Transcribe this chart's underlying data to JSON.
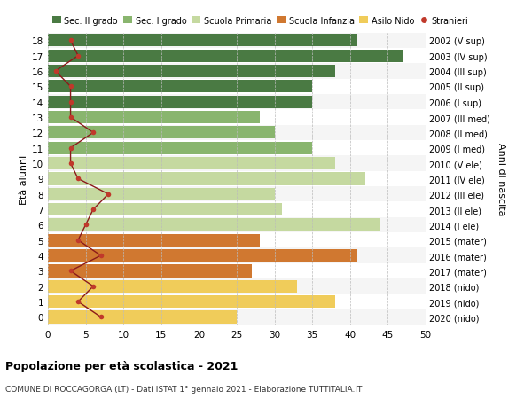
{
  "ages": [
    18,
    17,
    16,
    15,
    14,
    13,
    12,
    11,
    10,
    9,
    8,
    7,
    6,
    5,
    4,
    3,
    2,
    1,
    0
  ],
  "bar_values": [
    41,
    47,
    38,
    35,
    35,
    28,
    30,
    35,
    38,
    42,
    30,
    31,
    44,
    28,
    41,
    27,
    33,
    38,
    25
  ],
  "bar_colors": [
    "#4a7a43",
    "#4a7a43",
    "#4a7a43",
    "#4a7a43",
    "#4a7a43",
    "#89b56e",
    "#89b56e",
    "#89b56e",
    "#c5d9a0",
    "#c5d9a0",
    "#c5d9a0",
    "#c5d9a0",
    "#c5d9a0",
    "#d07830",
    "#d07830",
    "#d07830",
    "#f0cc5a",
    "#f0cc5a",
    "#f0cc5a"
  ],
  "stranieri_values": [
    3,
    4,
    1,
    3,
    3,
    3,
    6,
    3,
    3,
    4,
    8,
    6,
    5,
    4,
    7,
    3,
    6,
    4,
    7
  ],
  "right_labels": [
    "2002 (V sup)",
    "2003 (IV sup)",
    "2004 (III sup)",
    "2005 (II sup)",
    "2006 (I sup)",
    "2007 (III med)",
    "2008 (II med)",
    "2009 (I med)",
    "2010 (V ele)",
    "2011 (IV ele)",
    "2012 (III ele)",
    "2013 (II ele)",
    "2014 (I ele)",
    "2015 (mater)",
    "2016 (mater)",
    "2017 (mater)",
    "2018 (nido)",
    "2019 (nido)",
    "2020 (nido)"
  ],
  "legend_labels": [
    "Sec. II grado",
    "Sec. I grado",
    "Scuola Primaria",
    "Scuola Infanzia",
    "Asilo Nido",
    "Stranieri"
  ],
  "legend_colors": [
    "#4a7a43",
    "#89b56e",
    "#c5d9a0",
    "#d07830",
    "#f0cc5a",
    "#c0392b"
  ],
  "ylabel_left": "Età alunni",
  "ylabel_right": "Anni di nascita",
  "title": "Popolazione per età scolastica - 2021",
  "subtitle": "COMUNE DI ROCCAGORGA (LT) - Dati ISTAT 1° gennaio 2021 - Elaborazione TUTTITALIA.IT",
  "xlim": [
    0,
    50
  ],
  "xticks": [
    0,
    5,
    10,
    15,
    20,
    25,
    30,
    35,
    40,
    45,
    50
  ],
  "stranieri_color": "#c0392b",
  "line_color": "#8b1a1a",
  "bar_height": 0.82,
  "row_colors": [
    "#f5f5f5",
    "#ffffff"
  ]
}
